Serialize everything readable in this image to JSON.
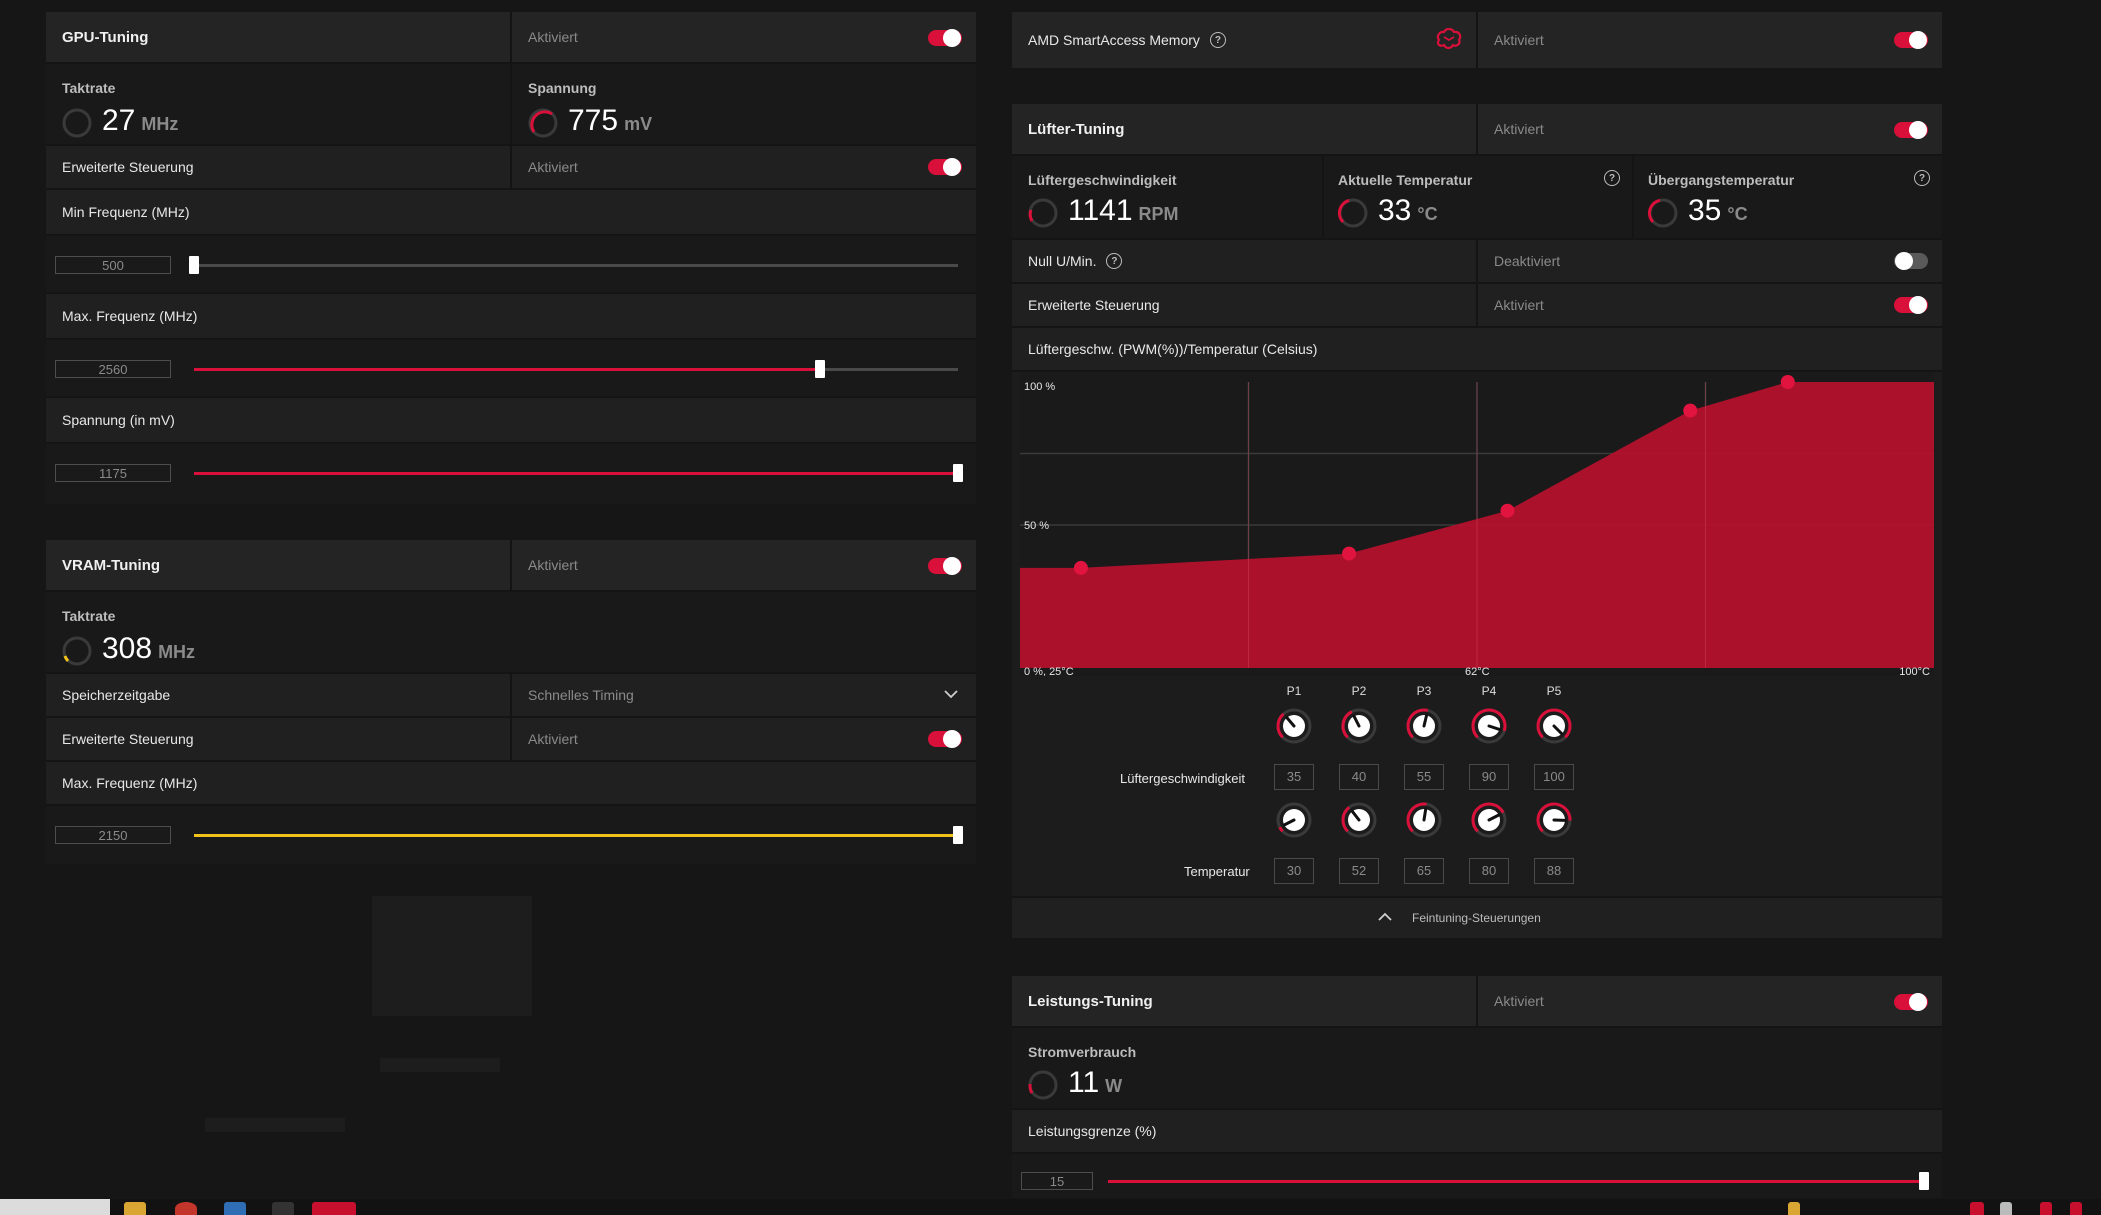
{
  "gpu_tuning": {
    "title": "GPU-Tuning",
    "state": "Aktiviert",
    "clock_label": "Taktrate",
    "clock_value": "27",
    "clock_unit": "MHz",
    "voltage_label": "Spannung",
    "voltage_value": "775",
    "voltage_unit": "mV",
    "advanced_label": "Erweiterte Steuerung",
    "advanced_state": "Aktiviert",
    "min_freq_label": "Min Frequenz (MHz)",
    "min_freq_value": "500",
    "min_freq_fraction": 0.0,
    "max_freq_label": "Max. Frequenz (MHz)",
    "max_freq_value": "2560",
    "max_freq_fraction": 0.82,
    "voltage_slider_label": "Spannung (in mV)",
    "voltage_slider_value": "1175",
    "voltage_slider_fraction": 1.0
  },
  "vram_tuning": {
    "title": "VRAM-Tuning",
    "state": "Aktiviert",
    "clock_label": "Taktrate",
    "clock_value": "308",
    "clock_unit": "MHz",
    "timing_label": "Speicherzeitgabe",
    "timing_value": "Schnelles Timing",
    "advanced_label": "Erweiterte Steuerung",
    "advanced_state": "Aktiviert",
    "max_freq_label": "Max. Frequenz (MHz)",
    "max_freq_value": "2150",
    "max_freq_fraction": 1.0
  },
  "smart_access": {
    "title": "AMD SmartAccess Memory",
    "state": "Aktiviert"
  },
  "fan_tuning": {
    "title": "Lüfter-Tuning",
    "state": "Aktiviert",
    "speed_label": "Lüftergeschwindigkeit",
    "speed_value": "1141",
    "speed_unit": "RPM",
    "temp_label": "Aktuelle Temperatur",
    "temp_value": "33",
    "temp_unit": "°C",
    "junction_label": "Übergangstemperatur",
    "junction_value": "35",
    "junction_unit": "°C",
    "zero_rpm_label": "Null U/Min.",
    "zero_rpm_state": "Deaktiviert",
    "advanced_label": "Erweiterte Steuerung",
    "advanced_state": "Aktiviert",
    "curve_label": "Lüftergeschw. (PWM(%))/Temperatur (Celsius)",
    "knob_headers": [
      "P1",
      "P2",
      "P3",
      "P4",
      "P5"
    ],
    "speed_row_label": "Lüftergeschwindigkeit",
    "temp_row_label": "Temperatur",
    "fine_tuning_label": "Feintuning-Steuerungen"
  },
  "chart_data": {
    "type": "area",
    "x": [
      30,
      52,
      65,
      80,
      88
    ],
    "y": [
      35,
      40,
      55,
      90,
      100
    ],
    "xlim": [
      25,
      100
    ],
    "ylim": [
      0,
      100
    ],
    "y_tick_labels": [
      "100 %",
      "50 %"
    ],
    "x_tick_labels": [
      "0 %, 25°C",
      "62°C",
      "100°C"
    ],
    "color": "#b8102e"
  },
  "power_tuning": {
    "title": "Leistungs-Tuning",
    "state": "Aktiviert",
    "power_label": "Stromverbrauch",
    "power_value": "11",
    "power_unit": "W",
    "limit_label": "Leistungsgrenze (%)",
    "limit_value": "15",
    "limit_fraction": 1.0
  },
  "colors": {
    "accent": "#d8103a",
    "vram_accent": "#f2c21b"
  }
}
